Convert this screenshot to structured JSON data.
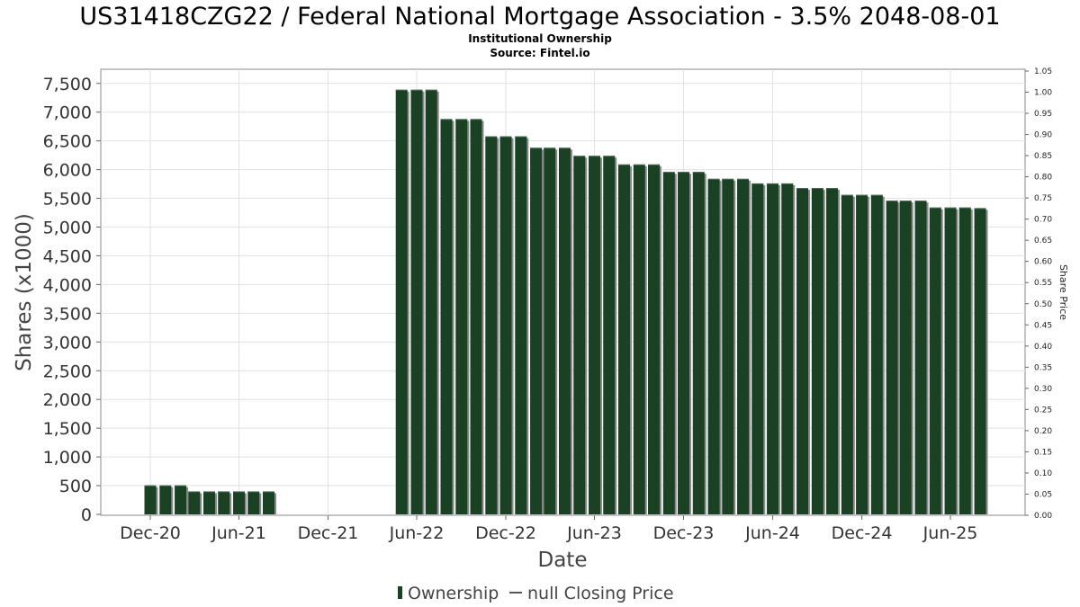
{
  "chart_data": {
    "type": "bar",
    "title": "US31418CZG22 / Federal National Mortgage Association - 3.5% 2048-08-01",
    "subtitle": "Institutional Ownership",
    "source": "Source: Fintel.io",
    "xlabel": "Date",
    "ylabel": "Shares (x1000)",
    "y2label": "Share Price",
    "ylim": [
      0,
      7750
    ],
    "y2lim": [
      0,
      1.05
    ],
    "yticks": [
      "0",
      "500",
      "1,000",
      "1,500",
      "2,000",
      "2,500",
      "3,000",
      "3,500",
      "4,000",
      "4,500",
      "5,000",
      "5,500",
      "6,000",
      "6,500",
      "7,000",
      "7,500"
    ],
    "y2ticks": [
      "0.00",
      "0.05",
      "0.10",
      "0.15",
      "0.20",
      "0.25",
      "0.30",
      "0.35",
      "0.40",
      "0.45",
      "0.50",
      "0.55",
      "0.60",
      "0.65",
      "0.70",
      "0.75",
      "0.80",
      "0.85",
      "0.90",
      "0.95",
      "1.00",
      "1.05"
    ],
    "xticks": [
      "Dec-20",
      "Jun-21",
      "Dec-21",
      "Jun-22",
      "Dec-22",
      "Jun-23",
      "Dec-23",
      "Jun-24",
      "Dec-24",
      "Jun-25"
    ],
    "grid": true,
    "legend_position": "bottom",
    "series": [
      {
        "name": "Ownership",
        "color": "#1b4125",
        "x": [
          "2020-12-15",
          "2021-01-15",
          "2021-02-15",
          "2021-03-15",
          "2021-04-15",
          "2021-05-15",
          "2021-06-15",
          "2021-07-15",
          "2021-08-15",
          "2022-05-15",
          "2022-06-15",
          "2022-07-15",
          "2022-08-15",
          "2022-09-15",
          "2022-10-15",
          "2022-11-15",
          "2022-12-15",
          "2023-01-15",
          "2023-02-15",
          "2023-03-15",
          "2023-04-15",
          "2023-05-15",
          "2023-06-15",
          "2023-07-15",
          "2023-08-15",
          "2023-09-15",
          "2023-10-15",
          "2023-11-15",
          "2023-12-15",
          "2024-01-15",
          "2024-02-15",
          "2024-03-15",
          "2024-04-15",
          "2024-05-15",
          "2024-06-15",
          "2024-07-15",
          "2024-08-15",
          "2024-09-15",
          "2024-10-15",
          "2024-11-15",
          "2024-12-15",
          "2025-01-15",
          "2025-02-15",
          "2025-03-15",
          "2025-04-15",
          "2025-05-15",
          "2025-06-15",
          "2025-07-15",
          "2025-08-15"
        ],
        "values": [
          505,
          505,
          505,
          400,
          400,
          400,
          400,
          400,
          400,
          7390,
          7390,
          7390,
          6880,
          6880,
          6880,
          6580,
          6580,
          6580,
          6380,
          6380,
          6380,
          6240,
          6240,
          6240,
          6090,
          6090,
          6090,
          5960,
          5960,
          5960,
          5840,
          5840,
          5840,
          5760,
          5760,
          5760,
          5680,
          5680,
          5680,
          5560,
          5560,
          5560,
          5460,
          5460,
          5460,
          5340,
          5340,
          5340,
          5330
        ]
      },
      {
        "name": "null Closing Price",
        "color": "#555555",
        "values": []
      }
    ]
  }
}
